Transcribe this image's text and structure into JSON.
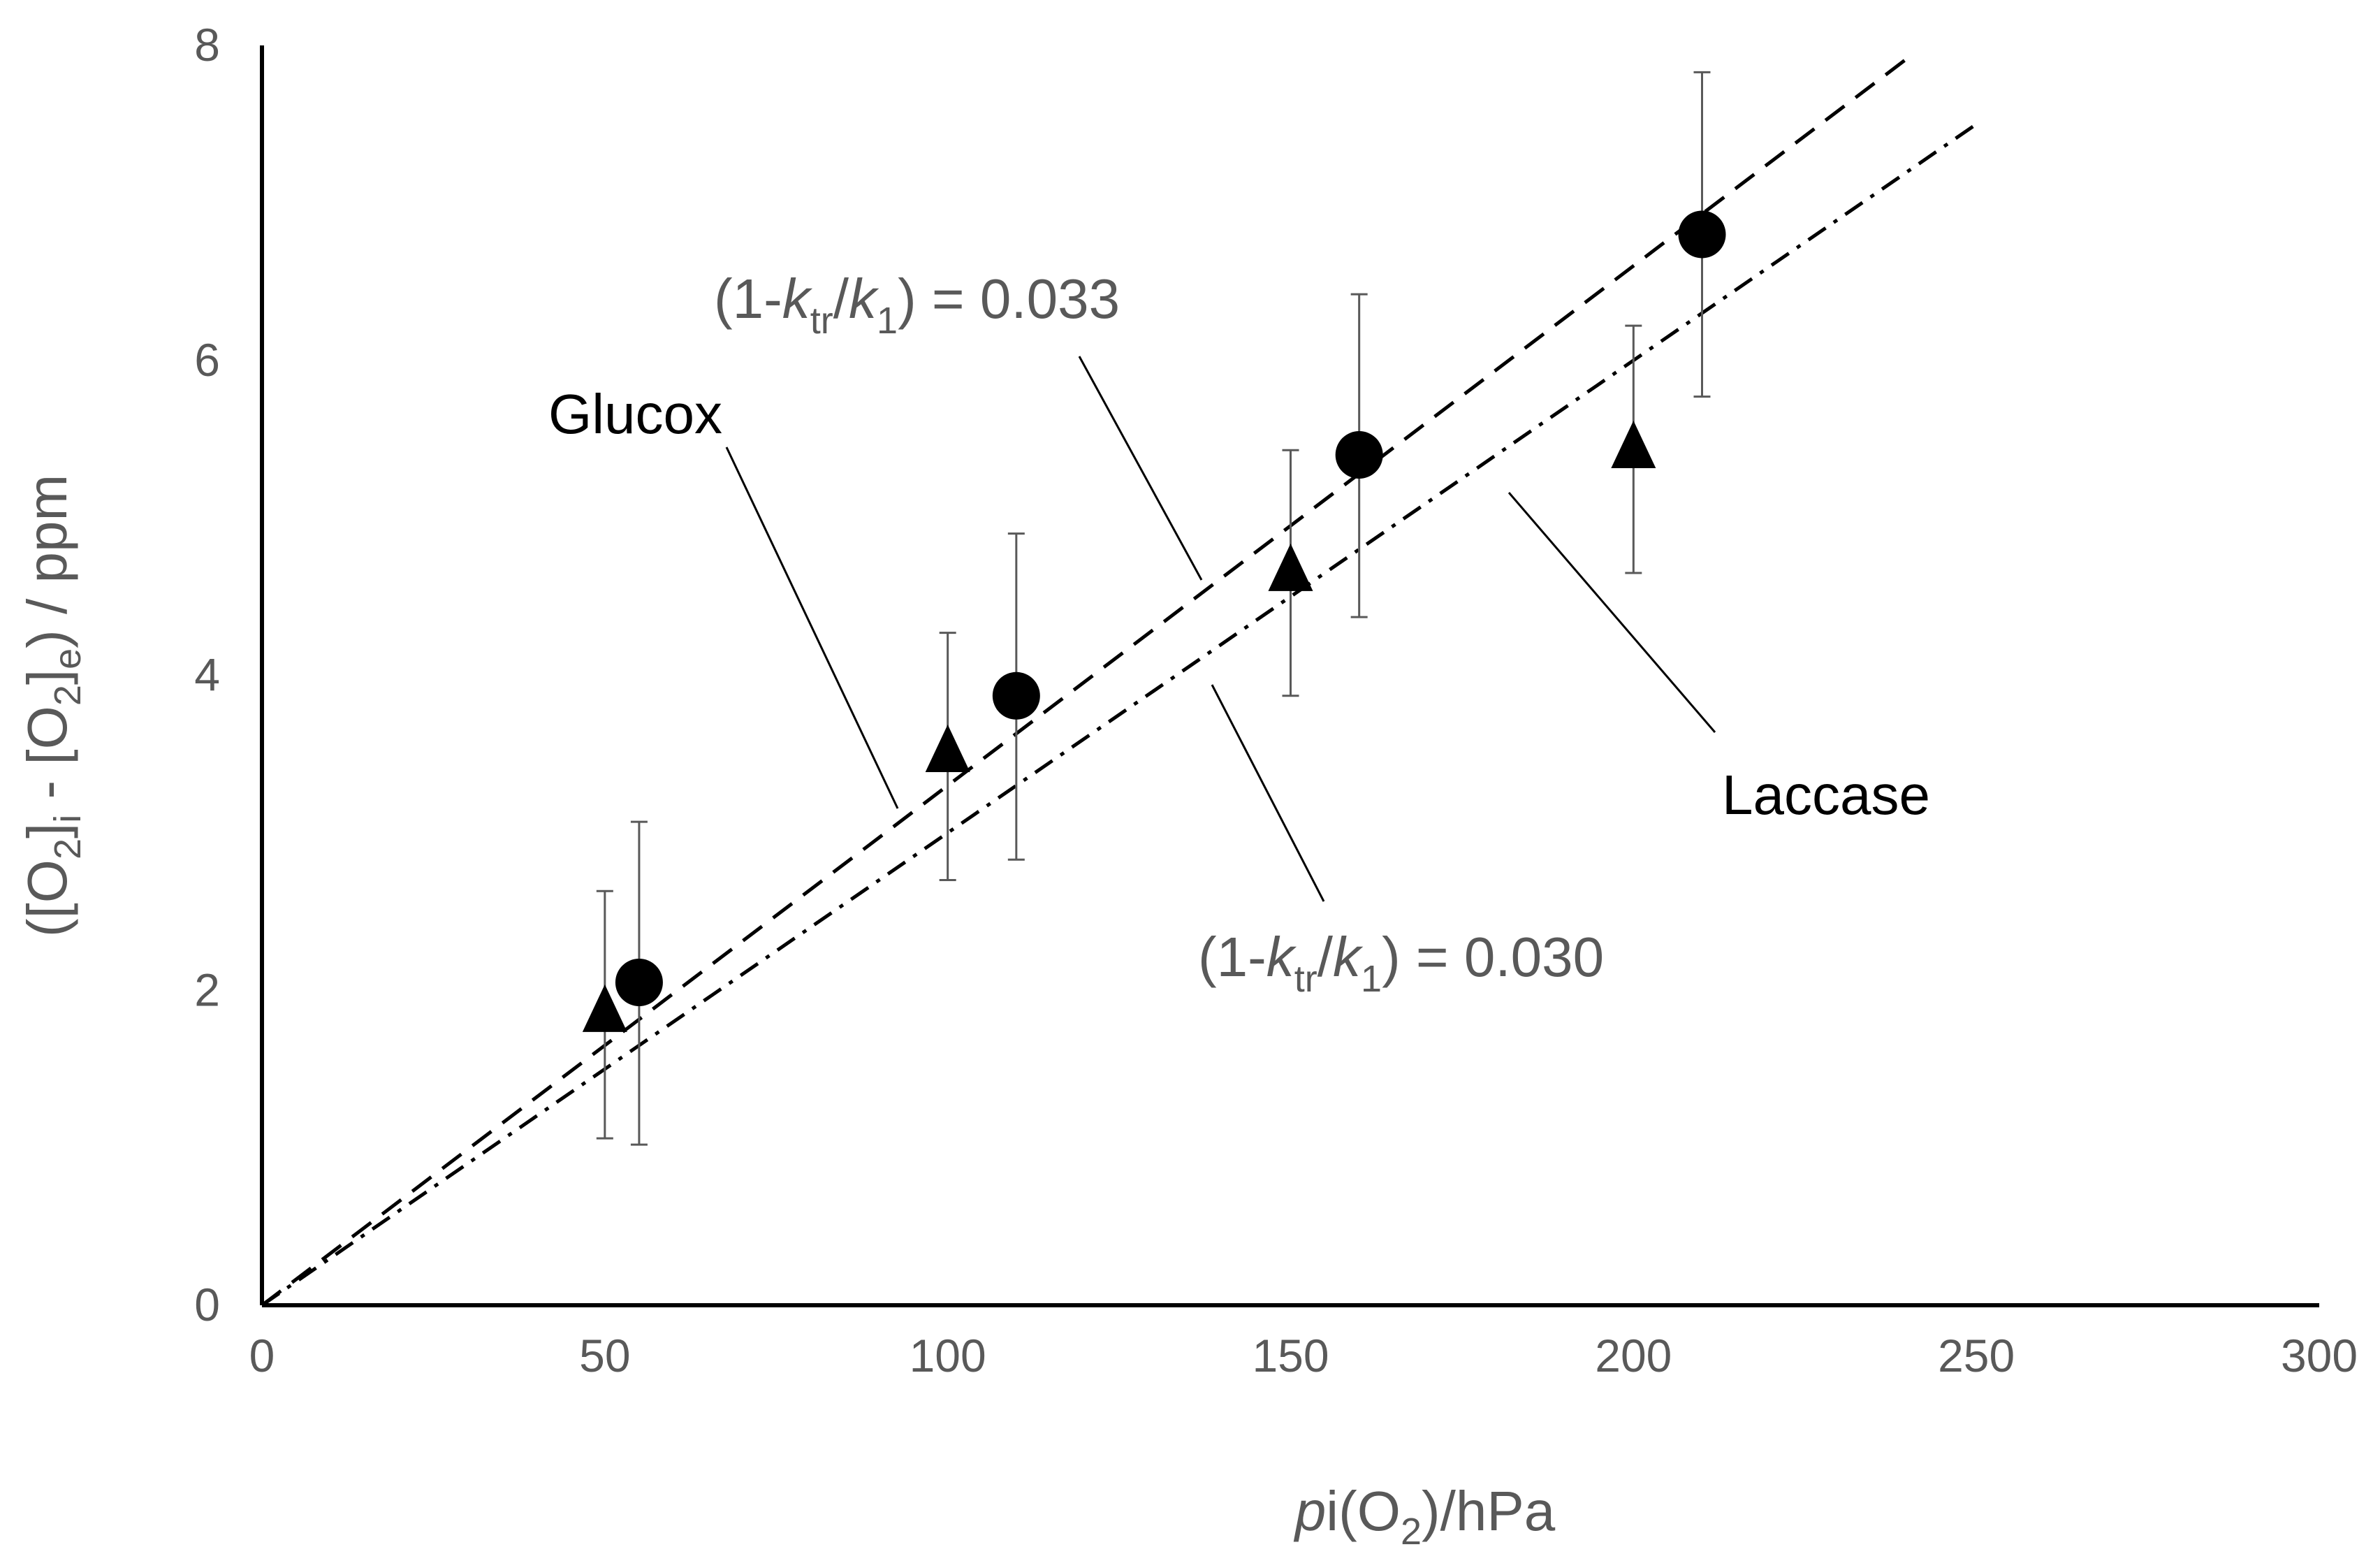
{
  "chart_data": {
    "type": "scatter",
    "title": "",
    "xlabel": {
      "prefix": "p",
      "mid": "i(O",
      "sub": "2",
      "suffix": ")/hPa"
    },
    "ylabel": {
      "p1": "([O",
      "s1": "2",
      "p2": "]",
      "s2": "i",
      "p3": " - [O",
      "s3": "2",
      "p4": "]",
      "s4": "e",
      "p5": ") / ppm"
    },
    "xlim": [
      0,
      300
    ],
    "ylim": [
      0,
      8
    ],
    "x_ticks": [
      "0",
      "50",
      "100",
      "150",
      "200",
      "250",
      "300"
    ],
    "y_ticks": [
      "0",
      "2",
      "4",
      "6",
      "8"
    ],
    "grid": false,
    "series": [
      {
        "name": "Glucox",
        "marker": "circle",
        "points": [
          {
            "x": 55,
            "y": 2.05,
            "err_low": 1.02,
            "err_high": 3.07
          },
          {
            "x": 110,
            "y": 3.87,
            "err_low": 2.83,
            "err_high": 4.9
          },
          {
            "x": 160,
            "y": 5.4,
            "err_low": 4.37,
            "err_high": 6.42
          },
          {
            "x": 210,
            "y": 6.8,
            "err_low": 5.77,
            "err_high": 7.83
          }
        ],
        "fit": {
          "style": "dashed",
          "slope": 0.033,
          "x_end": 240
        }
      },
      {
        "name": "Laccase",
        "marker": "triangle",
        "points": [
          {
            "x": 50,
            "y": 1.85,
            "err_low": 1.06,
            "err_high": 2.63
          },
          {
            "x": 100,
            "y": 3.5,
            "err_low": 2.7,
            "err_high": 4.27
          },
          {
            "x": 150,
            "y": 4.65,
            "err_low": 3.87,
            "err_high": 5.43
          },
          {
            "x": 200,
            "y": 5.43,
            "err_low": 4.65,
            "err_high": 6.22
          }
        ],
        "fit": {
          "style": "dash-dot",
          "slope": 0.03,
          "x_end": 250
        }
      }
    ],
    "annotations": {
      "glucox_label": "Glucox",
      "laccase_label": "Laccase",
      "eq_glucox": {
        "open": "(1-",
        "k1": "k",
        "k1sub": "tr",
        "slash": "/",
        "k2": "k",
        "k2sub": "1",
        "close": ")  = 0.033"
      },
      "eq_laccase": {
        "open": "(1-",
        "k1": "k",
        "k1sub": "tr",
        "slash": "/",
        "k2": "k",
        "k2sub": "1",
        "close": ") = 0.030"
      }
    }
  }
}
